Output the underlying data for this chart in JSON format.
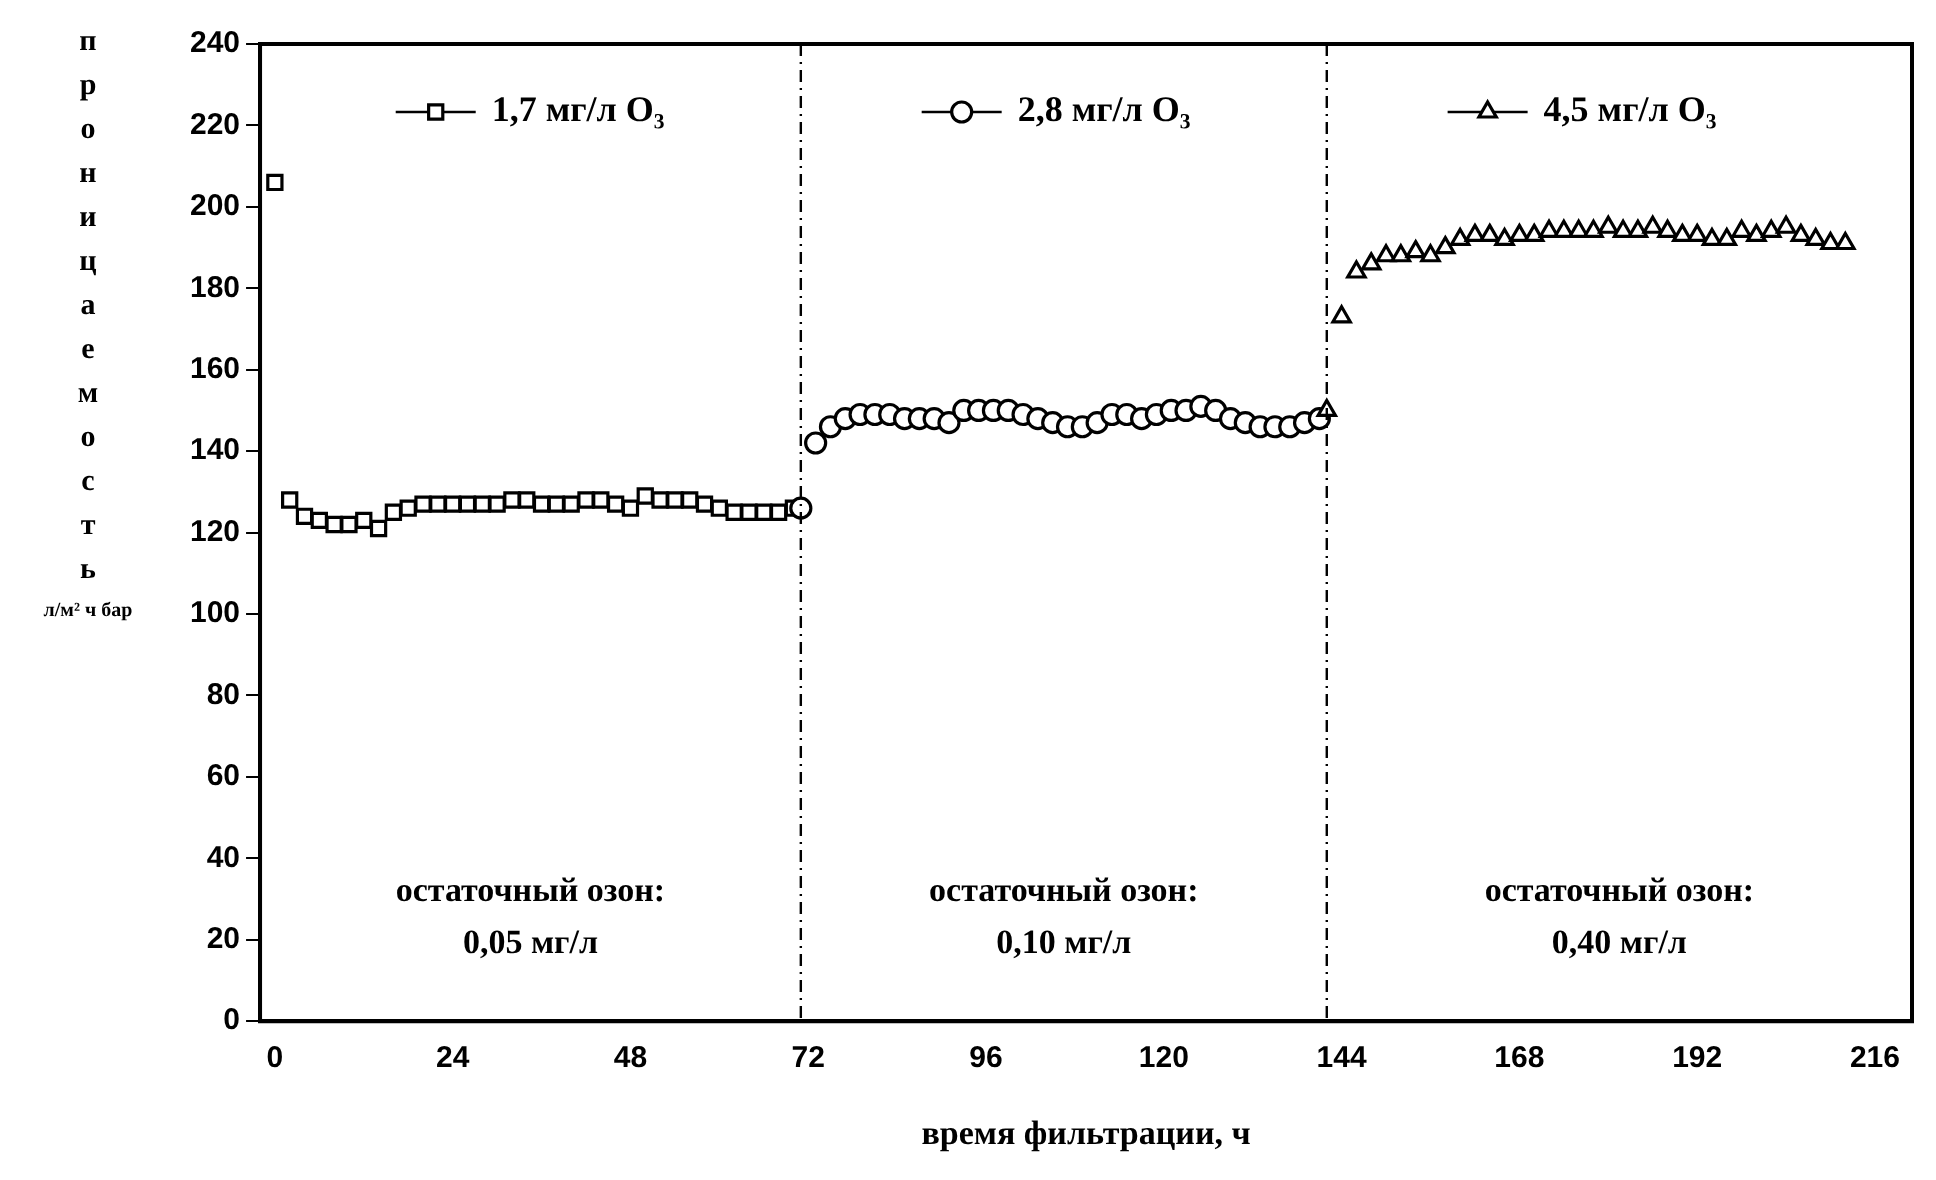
{
  "chart_data": {
    "type": "scatter",
    "xlabel": "время фильтрации, ч",
    "ylabel": "проницаемость л/м² ч бар",
    "xlim": [
      -2,
      221
    ],
    "ylim": [
      0,
      240
    ],
    "xticks": [
      0,
      24,
      48,
      72,
      96,
      120,
      144,
      168,
      192,
      216
    ],
    "yticks": [
      0,
      20,
      40,
      60,
      80,
      100,
      120,
      140,
      160,
      180,
      200,
      220,
      240
    ],
    "grid": false,
    "legend": "top",
    "series": [
      {
        "name": "1,7 мг/л O₃",
        "color": "#000000",
        "marker": "square",
        "x": [
          0,
          2,
          4,
          6,
          8,
          10,
          12,
          14,
          16,
          18,
          20,
          22,
          24,
          26,
          28,
          30,
          32,
          34,
          36,
          38,
          40,
          42,
          44,
          46,
          48,
          50,
          52,
          54,
          56,
          58,
          60,
          62,
          64,
          66,
          68,
          70
        ],
        "values": [
          206,
          128,
          124,
          123,
          122,
          122,
          123,
          121,
          125,
          126,
          127,
          127,
          127,
          127,
          127,
          127,
          128,
          128,
          127,
          127,
          127,
          128,
          128,
          127,
          126,
          129,
          128,
          128,
          128,
          127,
          126,
          125,
          125,
          125,
          125,
          126
        ]
      },
      {
        "name": "2,8 мг/л O₃",
        "color": "#000000",
        "marker": "circle",
        "x": [
          71,
          73,
          75,
          77,
          79,
          81,
          83,
          85,
          87,
          89,
          91,
          93,
          95,
          97,
          99,
          101,
          103,
          105,
          107,
          109,
          111,
          113,
          115,
          117,
          119,
          121,
          123,
          125,
          127,
          129,
          131,
          133,
          135,
          137,
          139,
          141
        ],
        "values": [
          126,
          142,
          146,
          148,
          149,
          149,
          149,
          148,
          148,
          148,
          147,
          150,
          150,
          150,
          150,
          149,
          148,
          147,
          146,
          146,
          147,
          149,
          149,
          148,
          149,
          150,
          150,
          151,
          150,
          148,
          147,
          146,
          146,
          146,
          147,
          148
        ]
      },
      {
        "name": "4,5 мг/л O₃",
        "color": "#000000",
        "marker": "triangle",
        "x": [
          142,
          144,
          146,
          148,
          150,
          152,
          154,
          156,
          158,
          160,
          162,
          164,
          166,
          168,
          170,
          172,
          174,
          176,
          178,
          180,
          182,
          184,
          186,
          188,
          190,
          192,
          194,
          196,
          198,
          200,
          202,
          204,
          206,
          208,
          210,
          212
        ],
        "values": [
          150,
          173,
          184,
          186,
          188,
          188,
          189,
          188,
          190,
          192,
          193,
          193,
          192,
          193,
          193,
          194,
          194,
          194,
          194,
          195,
          194,
          194,
          195,
          194,
          193,
          193,
          192,
          192,
          194,
          193,
          194,
          195,
          193,
          192,
          191,
          191
        ]
      }
    ],
    "ref_lines": [
      {
        "axis": "x",
        "value": 71,
        "line_style": "dashed",
        "color": "#000000"
      },
      {
        "axis": "x",
        "value": 142,
        "line_style": "dashed",
        "color": "#000000"
      }
    ],
    "annotations": [
      "остаточный озон:\n0,05 мг/л",
      "остаточный озон:\n0,10 мг/л",
      "остаточный озон:\n0,40 мг/л"
    ]
  }
}
